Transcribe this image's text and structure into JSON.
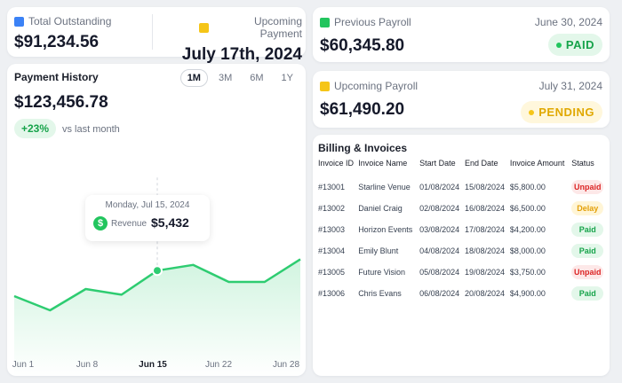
{
  "summary": {
    "total_outstanding_label": "Total Outstanding",
    "total_outstanding_value": "$91,234.56",
    "upcoming_payment_label": "Upcoming Payment",
    "upcoming_payment_value": "July 17th, 2024"
  },
  "previous_payroll": {
    "label": "Previous Payroll",
    "date": "June 30, 2024",
    "amount": "$60,345.80",
    "status": "PAID"
  },
  "upcoming_payroll": {
    "label": "Upcoming Payroll",
    "date": "July 31, 2024",
    "amount": "$61,490.20",
    "status": "PENDING"
  },
  "payment_history": {
    "title": "Payment History",
    "ranges": [
      "1M",
      "3M",
      "6M",
      "1Y"
    ],
    "active_range": "1M",
    "amount": "$123,456.78",
    "change": "+23%",
    "change_note": "vs last month",
    "tooltip": {
      "date": "Monday, Jul 15, 2024",
      "label": "Revenue",
      "value": "$5,432",
      "icon": "dollar-icon"
    }
  },
  "chart_data": {
    "type": "area",
    "x_ticks": [
      "Jun 1",
      "Jun 8",
      "Jun 15",
      "Jun 22",
      "Jun 28"
    ],
    "highlighted_tick": "Jun 15",
    "y": [
      0.3,
      0.2,
      0.35,
      0.31,
      0.48,
      0.52,
      0.4,
      0.4,
      0.56
    ],
    "highlight_index": 4,
    "color": "#2ecc71"
  },
  "billing": {
    "title": "Billing & Invoices",
    "columns": [
      "Invoice ID",
      "Invoice Name",
      "Start  Date",
      "End Date",
      "Invoice Amount",
      "Status"
    ],
    "rows": [
      {
        "id": "#13001",
        "name": "Starline Venue",
        "start": "01/08/2024",
        "end": "15/08/2024",
        "amount": "$5,800.00",
        "status": "Unpaid",
        "kind": "unpaid"
      },
      {
        "id": "#13002",
        "name": "Daniel Craig",
        "start": "02/08/2024",
        "end": "16/08/2024",
        "amount": "$6,500.00",
        "status": "Delay",
        "kind": "delay"
      },
      {
        "id": "#13003",
        "name": "Horizon Events",
        "start": "03/08/2024",
        "end": "17/08/2024",
        "amount": "$4,200.00",
        "status": "Paid",
        "kind": "paid"
      },
      {
        "id": "#13004",
        "name": "Emily Blunt",
        "start": "04/08/2024",
        "end": "18/08/2024",
        "amount": "$8,000.00",
        "status": "Paid",
        "kind": "paid"
      },
      {
        "id": "#13005",
        "name": "Future Vision",
        "start": "05/08/2024",
        "end": "19/08/2024",
        "amount": "$3,750.00",
        "status": "Unpaid",
        "kind": "unpaid"
      },
      {
        "id": "#13006",
        "name": "Chris Evans",
        "start": "06/08/2024",
        "end": "20/08/2024",
        "amount": "$4,900.00",
        "status": "Paid",
        "kind": "paid"
      }
    ]
  },
  "icons": {
    "total_outstanding": "wallet-icon",
    "upcoming_payment": "calendar-icon",
    "previous_payroll": "money-icon",
    "upcoming_payroll": "money-icon"
  },
  "colors": {
    "accent_green": "#22c55e",
    "pending_yellow": "#f5c518",
    "unpaid_red": "#dc2626"
  }
}
